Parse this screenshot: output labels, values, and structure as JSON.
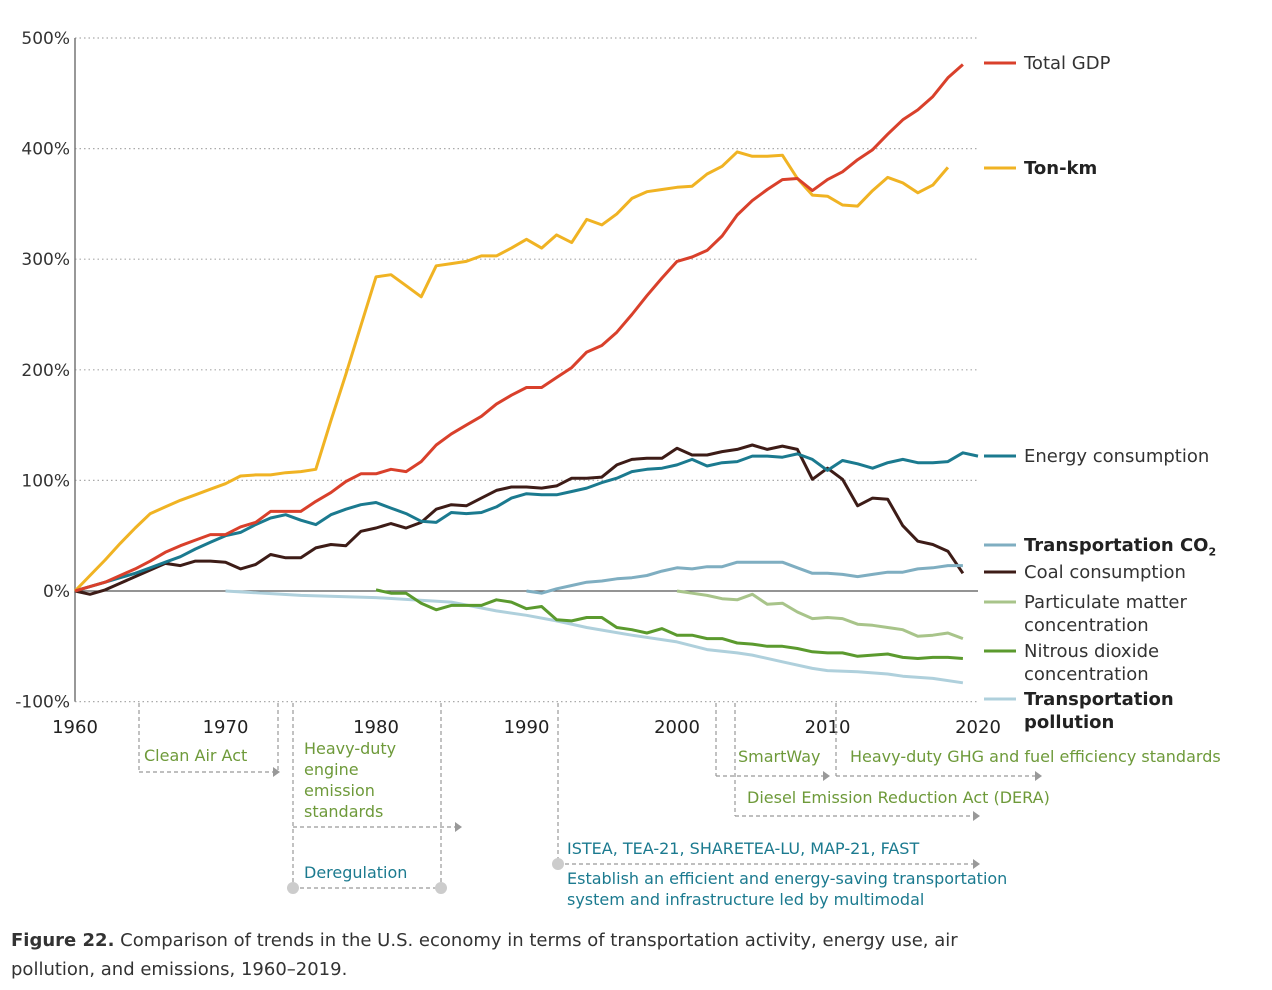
{
  "chart_data": {
    "type": "line",
    "title": "",
    "xlabel": "",
    "ylabel": "",
    "xlim": [
      1960,
      2020
    ],
    "ylim": [
      -100,
      500
    ],
    "x_ticks": [
      "1960",
      "1970",
      "1980",
      "1990",
      "2000",
      "2010",
      "2020"
    ],
    "y_ticks": [
      "500%",
      "400%",
      "300%",
      "200%",
      "100%",
      "0%",
      "-100%"
    ],
    "y_tick_values": [
      500,
      400,
      300,
      200,
      100,
      0,
      -100
    ],
    "grid": "horizontal dotted",
    "legend": "right, labels at line ends",
    "series": [
      {
        "name": "Total GDP",
        "color": "#d9402b",
        "bold": false,
        "start": 1960,
        "values": [
          0,
          4,
          8,
          14,
          20,
          27,
          35,
          41,
          46,
          51,
          51,
          58,
          62,
          72,
          72,
          72,
          81,
          89,
          99,
          106,
          106,
          110,
          108,
          117,
          132,
          142,
          150,
          158,
          169,
          177,
          184,
          184,
          193,
          202,
          216,
          222,
          234,
          250,
          267,
          283,
          298,
          302,
          308,
          321,
          340,
          353,
          363,
          372,
          373,
          362,
          372,
          379,
          390,
          399,
          413,
          426,
          435,
          447,
          464,
          476
        ]
      },
      {
        "name": "Ton-km",
        "color": "#f0b323",
        "bold": true,
        "start": 1960,
        "values": [
          0,
          14,
          28,
          43,
          57,
          70,
          76,
          82,
          87,
          92,
          97,
          104,
          105,
          105,
          107,
          108,
          110,
          154,
          196,
          240,
          284,
          286,
          276,
          266,
          294,
          296,
          298,
          303,
          303,
          310,
          318,
          310,
          322,
          315,
          336,
          331,
          341,
          355,
          361,
          363,
          365,
          366,
          377,
          384,
          397,
          393,
          393,
          394,
          373,
          358,
          357,
          349,
          348,
          362,
          374,
          369,
          360,
          367,
          383
        ]
      },
      {
        "name": "Energy consumption",
        "color": "#1b7a8f",
        "bold": false,
        "start": 1960,
        "values": [
          0,
          4,
          8,
          12,
          16,
          21,
          26,
          31,
          38,
          44,
          50,
          53,
          60,
          66,
          69,
          64,
          60,
          69,
          74,
          78,
          80,
          75,
          70,
          63,
          62,
          71,
          70,
          71,
          76,
          84,
          88,
          87,
          87,
          90,
          93,
          98,
          102,
          108,
          110,
          111,
          114,
          119,
          113,
          116,
          117,
          122,
          122,
          121,
          124,
          119,
          109,
          118,
          115,
          111,
          116,
          119,
          116,
          116,
          117,
          125,
          122
        ]
      },
      {
        "name": "Transportation CO2",
        "color": "#7faec1",
        "bold": true,
        "start": 1990,
        "values": [
          0,
          -2,
          2,
          5,
          8,
          9,
          11,
          12,
          14,
          18,
          21,
          20,
          22,
          22,
          26,
          26,
          26,
          26,
          21,
          16,
          16,
          15,
          13,
          15,
          17,
          17,
          20,
          21,
          23,
          23
        ]
      },
      {
        "name": "Coal consumption",
        "color": "#3d1c17",
        "bold": false,
        "start": 1960,
        "values": [
          0,
          -3,
          1,
          7,
          13,
          19,
          25,
          23,
          27,
          27,
          26,
          20,
          24,
          33,
          30,
          30,
          39,
          42,
          41,
          54,
          57,
          61,
          57,
          62,
          74,
          78,
          77,
          84,
          91,
          94,
          94,
          93,
          95,
          102,
          102,
          103,
          114,
          119,
          120,
          120,
          129,
          123,
          123,
          126,
          128,
          132,
          128,
          131,
          128,
          101,
          111,
          101,
          77,
          84,
          83,
          59,
          45,
          42,
          36,
          16
        ]
      },
      {
        "name": "Particulate matter concentration",
        "color": "#a8c48a",
        "bold": false,
        "start": 2000,
        "values": [
          0,
          -2,
          -4,
          -7,
          -8,
          -3,
          -12,
          -11,
          -19,
          -25,
          -24,
          -25,
          -30,
          -31,
          -33,
          -35,
          -41,
          -40,
          -38,
          -43
        ]
      },
      {
        "name": "Nitrous dioxide concentration",
        "color": "#5b9a2e",
        "bold": false,
        "start": 1980,
        "values": [
          1,
          -2,
          -2,
          -11,
          -17,
          -13,
          -13,
          -13,
          -8,
          -10,
          -16,
          -14,
          -26,
          -27,
          -24,
          -24,
          -33,
          -35,
          -38,
          -34,
          -40,
          -40,
          -43,
          -43,
          -47,
          -48,
          -50,
          -50,
          -52,
          -55,
          -56,
          -56,
          -59,
          -58,
          -57,
          -60,
          -61,
          -60,
          -60,
          -61
        ]
      },
      {
        "name": "Transportation pollution",
        "color": "#afd0dc",
        "bold": true,
        "x": [
          1970,
          1975,
          1980,
          1985,
          1988,
          1990,
          1992,
          1994,
          1997,
          2000,
          2002,
          2004,
          2005,
          2007,
          2009,
          2010,
          2012,
          2014,
          2015,
          2017,
          2019
        ],
        "values": [
          0,
          -4,
          -6,
          -10,
          -18,
          -22,
          -27,
          -33,
          -40,
          -46,
          -53,
          -56,
          -58,
          -64,
          -70,
          -72,
          -73,
          -75,
          -77,
          -79,
          -83
        ]
      }
    ]
  },
  "legend_labels": {
    "gdp": "Total GDP",
    "tonkm": "Ton-km",
    "energy": "Energy consumption",
    "co2_main": "Transportation CO",
    "co2_sub": "2",
    "coal": "Coal consumption",
    "pm_1": "Particulate matter",
    "pm_2": "concentration",
    "no2_1": "Nitrous dioxide",
    "no2_2": "concentration",
    "pol_1": "Transportation",
    "pol_2": "pollution"
  },
  "annotations": {
    "clean_air": "Clean Air Act",
    "hd_engine": [
      "Heavy-duty",
      "engine",
      "emission",
      "standards"
    ],
    "deregulation": "Deregulation",
    "smartway": "SmartWay",
    "hd_ghg": "Heavy-duty GHG and fuel efficiency standards",
    "dera": "Diesel Emission Reduction Act (DERA)",
    "istea": "ISTEA, TEA-21, SHARETEA-LU, MAP-21, FAST",
    "establish": [
      "Establish an efficient and energy-saving transportation",
      "system and infrastructure led by multimodal"
    ]
  },
  "caption": {
    "label": "Figure 22.",
    "text": "Comparison of trends in the U.S. economy in terms of transportation activity, energy use, air pollution, and emissions, 1960–2019."
  }
}
